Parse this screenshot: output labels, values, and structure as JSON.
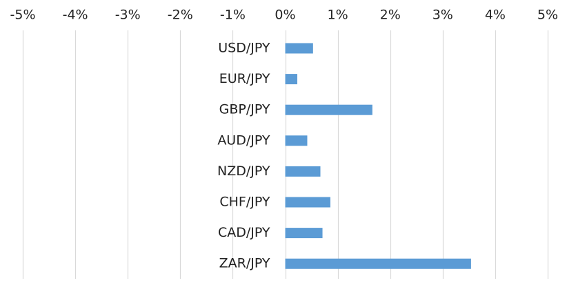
{
  "chart_data": {
    "type": "bar",
    "orientation": "horizontal",
    "title": "",
    "xlabel": "",
    "ylabel": "",
    "xlim": [
      -5,
      5
    ],
    "x_ticks": [
      -5,
      -4,
      -3,
      -2,
      -1,
      0,
      1,
      2,
      3,
      4,
      5
    ],
    "x_tick_labels": [
      "-5%",
      "-4%",
      "-3%",
      "-2%",
      "-1%",
      "0%",
      "1%",
      "2%",
      "3%",
      "4%",
      "5%"
    ],
    "axis_position": "top",
    "grid": true,
    "categories": [
      "USD/JPY",
      "EUR/JPY",
      "GBP/JPY",
      "AUD/JPY",
      "NZD/JPY",
      "CHF/JPY",
      "CAD/JPY",
      "ZAR/JPY"
    ],
    "values": [
      0.53,
      0.23,
      1.66,
      0.42,
      0.67,
      0.86,
      0.71,
      3.54
    ],
    "unit": "%",
    "colors": {
      "bar": "#5b9bd5",
      "grid": "#d9d9d9",
      "text": "#222222"
    }
  }
}
